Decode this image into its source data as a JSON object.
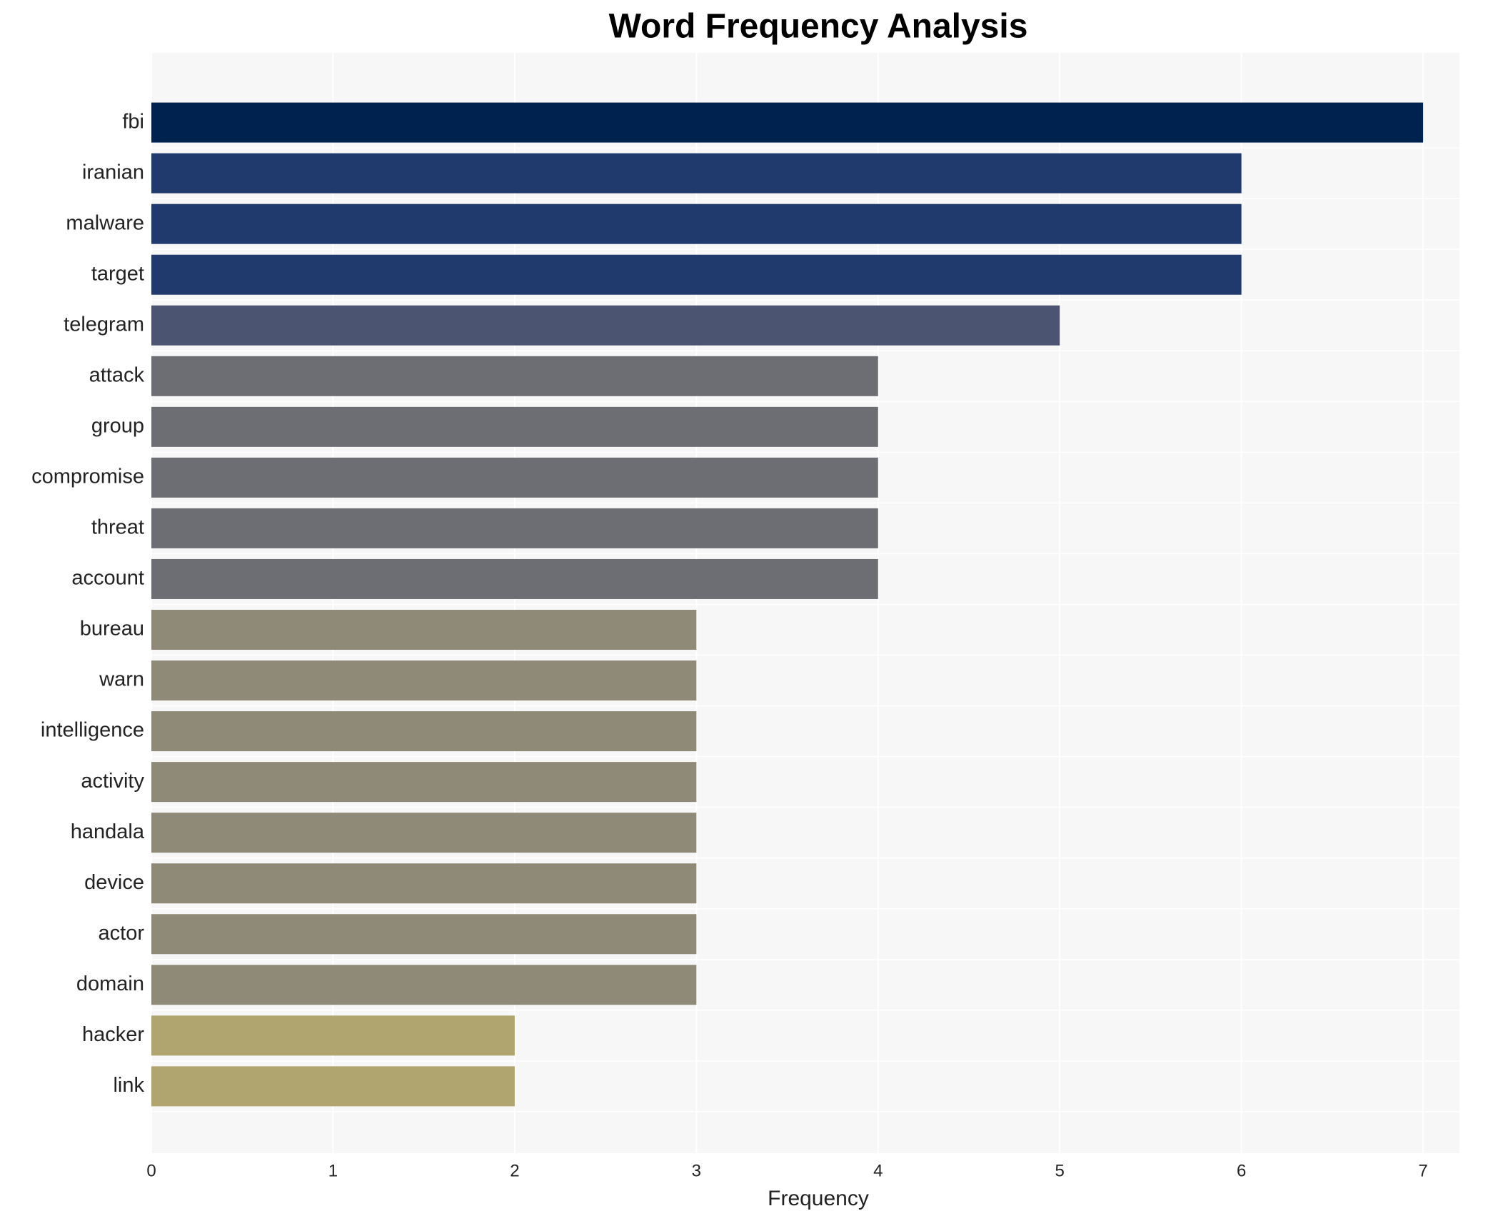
{
  "chart_data": {
    "type": "barh",
    "title": "Word Frequency Analysis",
    "x_label": "Frequency",
    "categories": [
      "fbi",
      "iranian",
      "malware",
      "target",
      "telegram",
      "attack",
      "group",
      "compromise",
      "threat",
      "account",
      "bureau",
      "warn",
      "intelligence",
      "activity",
      "handala",
      "device",
      "actor",
      "domain",
      "hacker",
      "link"
    ],
    "values": [
      7,
      6,
      6,
      6,
      5,
      4,
      4,
      4,
      4,
      4,
      3,
      3,
      3,
      3,
      3,
      3,
      3,
      3,
      2,
      2
    ],
    "colors": [
      "#00224e",
      "#213a6e",
      "#213a6e",
      "#213a6e",
      "#4b5470",
      "#6d6e73",
      "#6d6e73",
      "#6d6e73",
      "#6d6e73",
      "#6d6e73",
      "#8f8a78",
      "#8f8a78",
      "#8f8a78",
      "#8f8a78",
      "#8f8a78",
      "#8f8a78",
      "#8f8a78",
      "#8f8a78",
      "#b0a46f",
      "#b0a46f"
    ],
    "xlim": [
      0,
      7.2
    ],
    "xticks": [
      0,
      1,
      2,
      3,
      4,
      5,
      6,
      7
    ],
    "grid": true
  }
}
